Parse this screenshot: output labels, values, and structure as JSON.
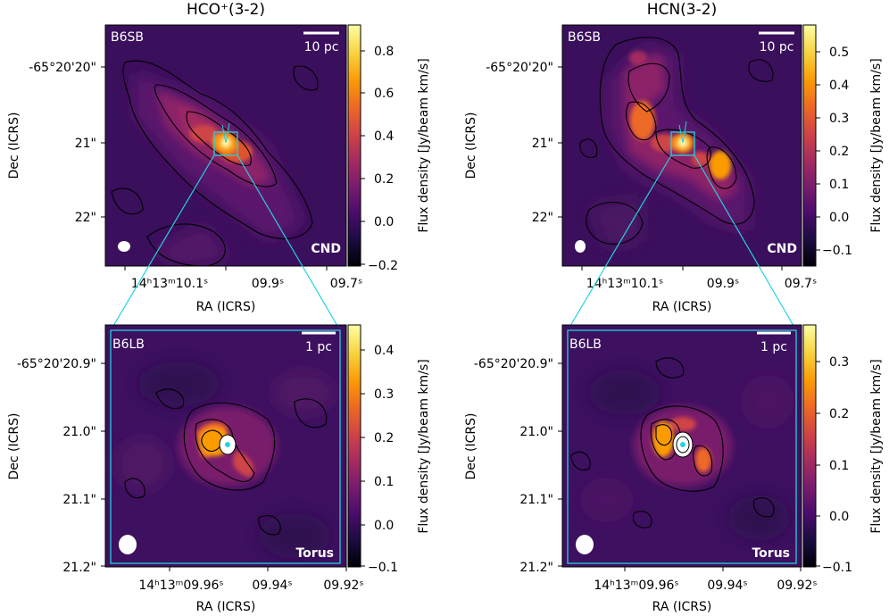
{
  "panels": [
    {
      "title": "HCO⁺(3-2)",
      "band": "B6SB",
      "scale_label": "10 pc",
      "region": "CND",
      "dec_ticks": [
        "-65°20'20\"",
        "21\"",
        "22\""
      ],
      "ra_ticks": [
        "14ʰ13ᵐ10.1ˢ",
        "09.9ˢ",
        "09.7ˢ"
      ],
      "ra_label": "RA (ICRS)",
      "dec_label": "Dec (ICRS)",
      "cbar_label": "Flux density [Jy/beam km/s]",
      "cbar_ticks": [
        "0.8",
        "0.6",
        "0.4",
        "0.2",
        "0.0",
        "−0.2"
      ],
      "cbar_range": [
        -0.2,
        0.9
      ]
    },
    {
      "title": "HCN(3-2)",
      "band": "B6SB",
      "scale_label": "10 pc",
      "region": "CND",
      "dec_ticks": [
        "-65°20'20\"",
        "21\"",
        "22\""
      ],
      "ra_ticks": [
        "14ʰ13ᵐ10.1ˢ",
        "09.9ˢ",
        "09.7ˢ"
      ],
      "ra_label": "RA (ICRS)",
      "dec_label": "Dec (ICRS)",
      "cbar_label": "Flux density [Jy/beam km/s]",
      "cbar_ticks": [
        "0.5",
        "0.4",
        "0.3",
        "0.2",
        "0.1",
        "0.0",
        "−0.1"
      ],
      "cbar_range": [
        -0.15,
        0.58
      ]
    },
    {
      "title": "",
      "band": "B6LB",
      "scale_label": "1 pc",
      "region": "Torus",
      "dec_ticks": [
        "-65°20'20.9\"",
        "21.0\"",
        "21.1\"",
        "21.2\""
      ],
      "ra_ticks": [
        "14ʰ13ᵐ09.96ˢ",
        "09.94ˢ",
        "09.92ˢ"
      ],
      "ra_label": "RA (ICRS)",
      "dec_label": "Dec (ICRS)",
      "cbar_label": "Flux density [Jy/beam km/s]",
      "cbar_ticks": [
        "0.4",
        "0.3",
        "0.2",
        "0.1",
        "0.0",
        "−0.1"
      ],
      "cbar_range": [
        -0.1,
        0.45
      ]
    },
    {
      "title": "",
      "band": "B6LB",
      "scale_label": "1 pc",
      "region": "Torus",
      "dec_ticks": [
        "-65°20'20.9\"",
        "21.0\"",
        "21.1\"",
        "21.2\""
      ],
      "ra_ticks": [
        "14ʰ13ᵐ09.96ˢ",
        "09.94ˢ",
        "09.92ˢ"
      ],
      "ra_label": "RA (ICRS)",
      "dec_label": "Dec (ICRS)",
      "cbar_label": "Flux density [Jy/beam km/s]",
      "cbar_ticks": [
        "0.3",
        "0.2",
        "0.1",
        "0.0",
        "−0.1"
      ],
      "cbar_range": [
        -0.1,
        0.36
      ]
    }
  ],
  "colors": {
    "colormap": [
      "#000004",
      "#1b0c41",
      "#4a0c6b",
      "#781c6d",
      "#a52c60",
      "#cf4446",
      "#ed6925",
      "#fb9b06",
      "#f7d13d",
      "#fcffa4"
    ],
    "zoom_box": "#22d3e0",
    "contour": "#000000"
  }
}
